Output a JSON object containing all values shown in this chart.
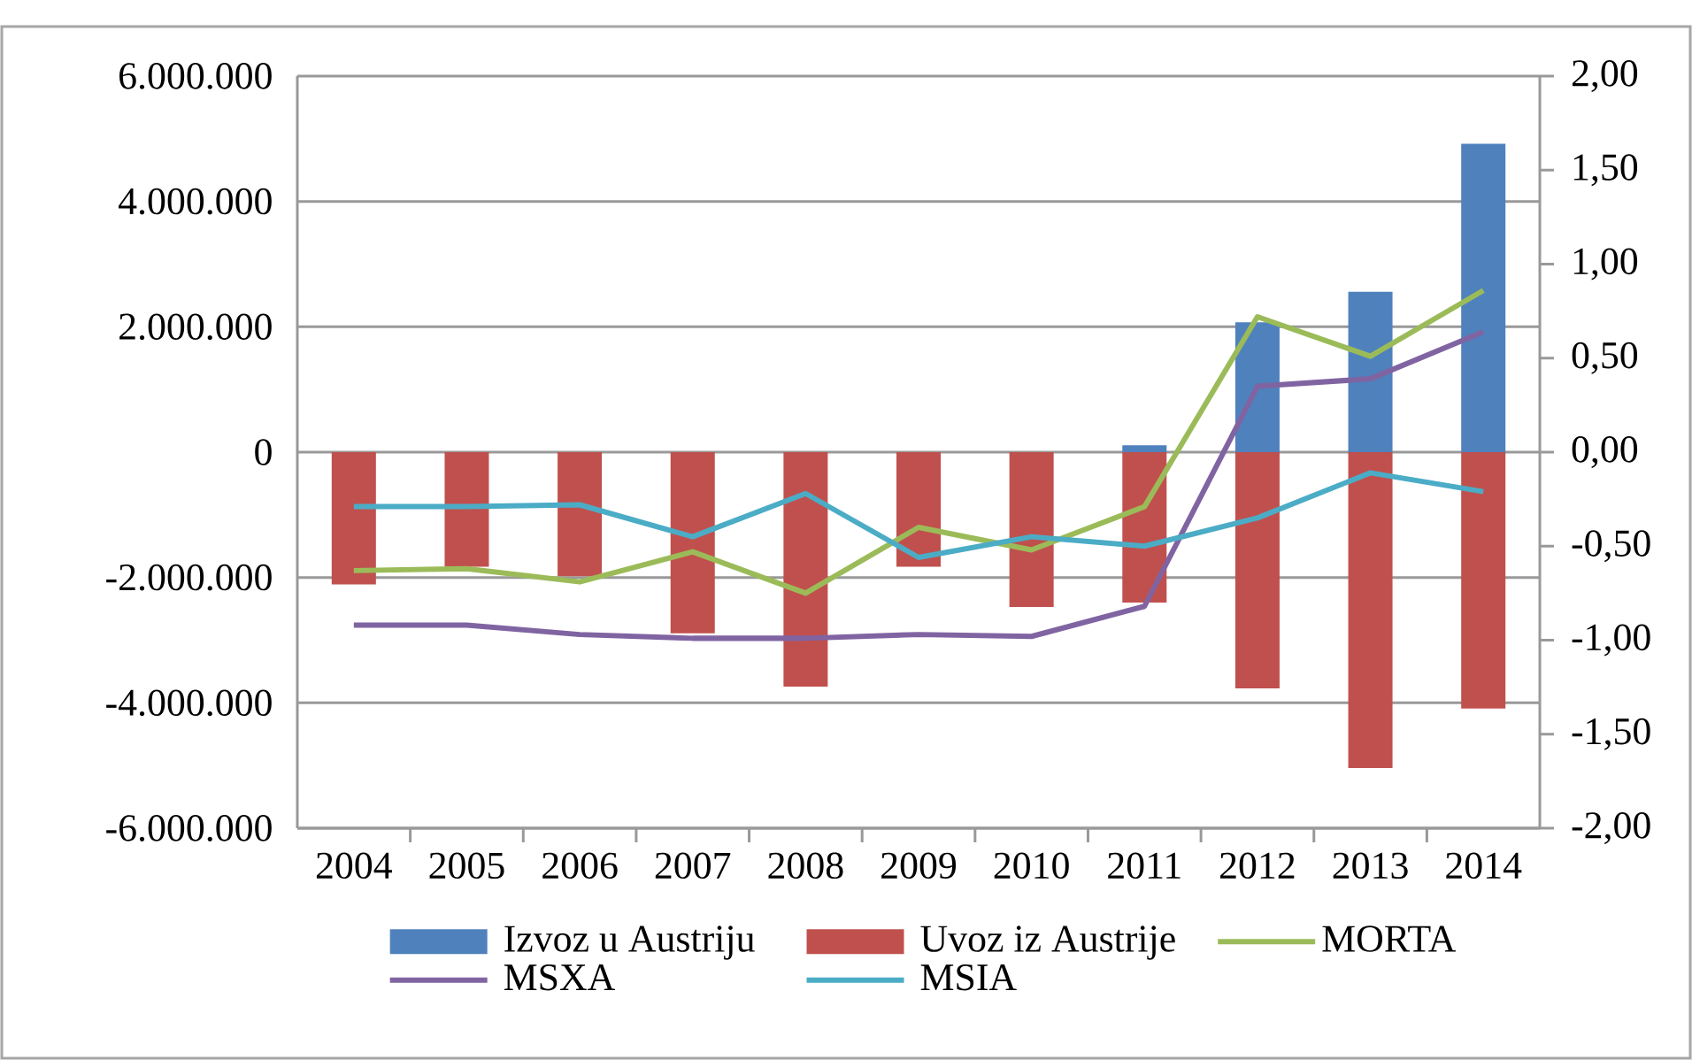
{
  "chart_data": {
    "type": "bar",
    "categories": [
      "2004",
      "2005",
      "2006",
      "2007",
      "2008",
      "2009",
      "2010",
      "2011",
      "2012",
      "2013",
      "2014"
    ],
    "series": [
      {
        "name": "Izvoz u Austriju",
        "color": "#4f81bd",
        "values": [
          0,
          0,
          0,
          0,
          0,
          0,
          0,
          110000,
          2070000,
          2560000,
          4920000
        ]
      },
      {
        "name": "Uvoz iz Austrije",
        "color": "#c0504d",
        "values": [
          -2110000,
          -1830000,
          -1980000,
          -2890000,
          -3740000,
          -1830000,
          -2470000,
          -2400000,
          -3770000,
          -5040000,
          -4090000
        ]
      },
      {
        "name": "MORTA",
        "type": "line",
        "axis": "y2",
        "color": "#9bbb59",
        "values": [
          -0.63,
          -0.62,
          -0.69,
          -0.53,
          -0.75,
          -0.4,
          -0.52,
          -0.29,
          0.72,
          0.51,
          0.86
        ]
      },
      {
        "name": "MSXA",
        "type": "line",
        "axis": "y2",
        "color": "#8064a2",
        "values": [
          -0.92,
          -0.92,
          -0.97,
          -0.99,
          -0.99,
          -0.97,
          -0.98,
          -0.82,
          0.35,
          0.39,
          0.64
        ]
      },
      {
        "name": "MSIA",
        "type": "line",
        "axis": "y2",
        "color": "#4bacc6",
        "values": [
          -0.29,
          -0.29,
          -0.28,
          -0.45,
          -0.22,
          -0.56,
          -0.45,
          -0.5,
          -0.35,
          -0.11,
          -0.21
        ]
      }
    ],
    "ylim": [
      -6000000,
      6000000
    ],
    "yticks": [
      {
        "value": -6000000,
        "label": "-6.000.000"
      },
      {
        "value": -4000000,
        "label": "-4.000.000"
      },
      {
        "value": -2000000,
        "label": "-2.000.000"
      },
      0,
      {
        "value": 2000000,
        "label": "2.000.000"
      },
      {
        "value": 4000000,
        "label": "4.000.000"
      },
      {
        "value": 6000000,
        "label": "6.000.000"
      }
    ],
    "y2lim": [
      -2,
      2
    ],
    "y2ticks": [
      {
        "value": -2,
        "label": "-2,00"
      },
      {
        "value": -1.5,
        "label": "-1,50"
      },
      {
        "value": -1,
        "label": "-1,00"
      },
      {
        "value": -0.5,
        "label": "-0,50"
      },
      {
        "value": 0,
        "label": "0,00"
      },
      {
        "value": 0.5,
        "label": "0,50"
      },
      {
        "value": 1,
        "label": "1,00"
      },
      {
        "value": 1.5,
        "label": "1,50"
      },
      {
        "value": 2,
        "label": "2,00"
      }
    ],
    "grid": "y",
    "legend": "bottom"
  }
}
